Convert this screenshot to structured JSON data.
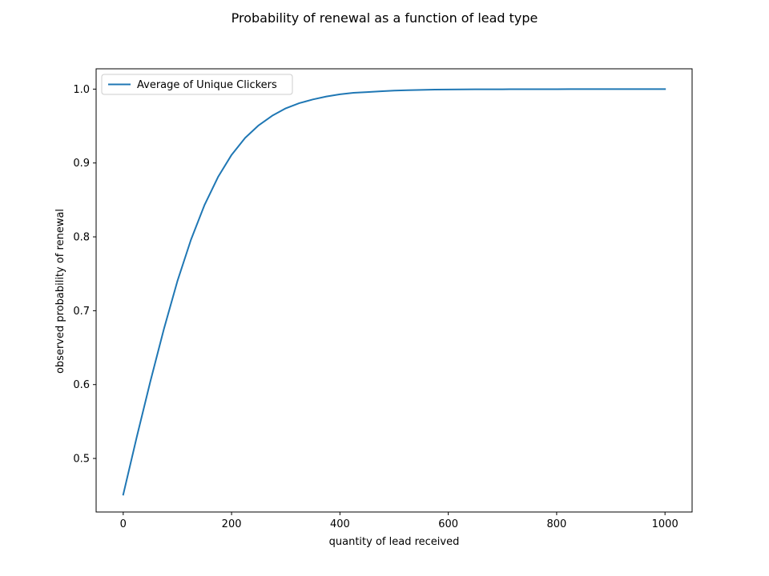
{
  "chart_data": {
    "type": "line",
    "title": "Probability of renewal as a function of lead type",
    "xlabel": "quantity of lead received",
    "ylabel": "observed probability of renewal",
    "xlim": [
      -50,
      1050
    ],
    "ylim": [
      0.4275,
      1.0275
    ],
    "xticks": [
      0,
      200,
      400,
      600,
      800,
      1000
    ],
    "xtick_labels": [
      "0",
      "200",
      "400",
      "600",
      "800",
      "1000"
    ],
    "yticks": [
      0.5,
      0.6,
      0.7,
      0.8,
      0.9,
      1.0
    ],
    "ytick_labels": [
      "0.5",
      "0.6",
      "0.7",
      "0.8",
      "0.9",
      "1.0"
    ],
    "grid": false,
    "legend_position": "upper-left",
    "series": [
      {
        "name": "Average of Unique Clickers",
        "color": "#1f77b4",
        "x": [
          0,
          25,
          50,
          75,
          100,
          125,
          150,
          175,
          200,
          225,
          250,
          275,
          300,
          325,
          350,
          375,
          400,
          425,
          450,
          475,
          500,
          525,
          550,
          575,
          600,
          625,
          650,
          675,
          700,
          725,
          750,
          775,
          800,
          825,
          850,
          875,
          900,
          925,
          950,
          975,
          1000
        ],
        "y": [
          0.451,
          0.529,
          0.604,
          0.675,
          0.74,
          0.796,
          0.843,
          0.881,
          0.911,
          0.934,
          0.951,
          0.964,
          0.974,
          0.981,
          0.986,
          0.99,
          0.993,
          0.995,
          0.996,
          0.997,
          0.998,
          0.9985,
          0.999,
          0.9993,
          0.9995,
          0.9996,
          0.9997,
          0.9998,
          0.9998,
          0.9999,
          0.9999,
          0.9999,
          0.9999,
          1.0,
          1.0,
          1.0,
          1.0,
          1.0,
          1.0,
          1.0,
          1.0
        ]
      }
    ]
  }
}
